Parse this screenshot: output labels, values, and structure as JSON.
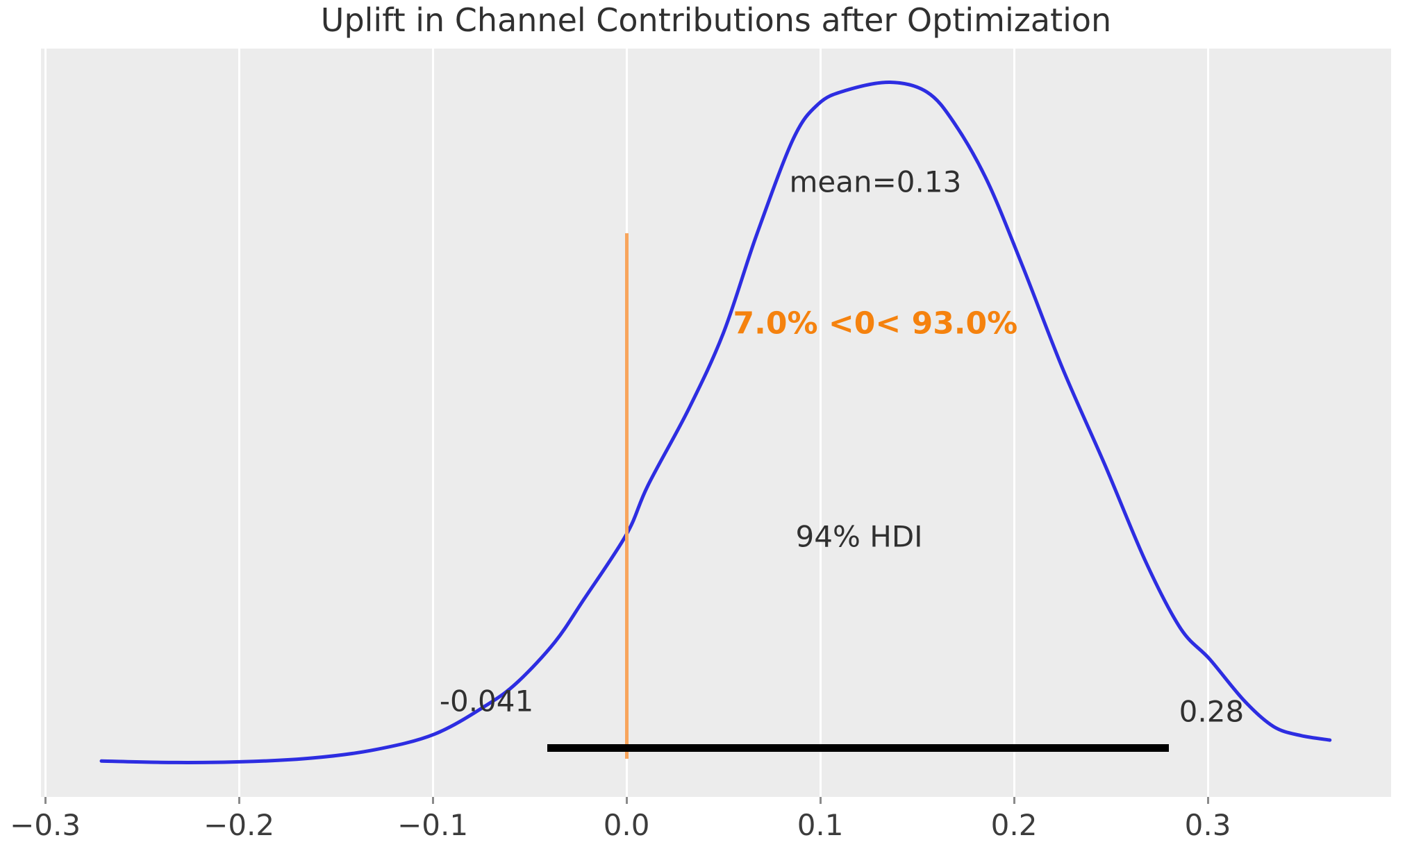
{
  "title": "Uplift in Channel Contributions after Optimization",
  "colors": {
    "plot_background": "#ececec",
    "figure_background": "#ffffff",
    "gridline": "#ffffff",
    "curve": "#2d2de1",
    "ref_line": "#f8a55c",
    "prob_text": "#f5820e",
    "hdi_bar": "#000000",
    "annotation_text": "#303030",
    "tick_text": "#3c3c3c"
  },
  "annotations": {
    "mean_label": "mean=0.13",
    "prob_label": "7.0% <0< 93.0%",
    "hdi_label": "94% HDI",
    "hdi_lower_label": "-0.041",
    "hdi_upper_label": "0.28"
  },
  "chart_data": {
    "type": "line",
    "subtype": "posterior-density-kde",
    "title": "Uplift in Channel Contributions after Optimization",
    "xlabel": "",
    "ylabel": "",
    "legend": "none",
    "grid": "vertical white gridlines on gray panel",
    "xlim": [
      -0.3022,
      0.3946
    ],
    "x_ticks": [
      {
        "value": -0.3,
        "label": "−0.3"
      },
      {
        "value": -0.2,
        "label": "−0.2"
      },
      {
        "value": -0.1,
        "label": "−0.1"
      },
      {
        "value": 0.0,
        "label": "0.0"
      },
      {
        "value": 0.1,
        "label": "0.1"
      },
      {
        "value": 0.2,
        "label": "0.2"
      },
      {
        "value": 0.3,
        "label": "0.3"
      }
    ],
    "stats": {
      "mean": 0.13,
      "hdi_prob": "94%",
      "hdi_lower": -0.041,
      "hdi_upper": 0.28,
      "ref_value": 0,
      "pct_below_ref": 7.0,
      "pct_above_ref": 93.0
    },
    "series": [
      {
        "name": "posterior density",
        "x": [
          -0.271,
          -0.234,
          -0.198,
          -0.162,
          -0.13,
          -0.099,
          -0.072,
          -0.056,
          -0.037,
          -0.022,
          0.0,
          0.011,
          0.032,
          0.05,
          0.067,
          0.086,
          0.099,
          0.113,
          0.136,
          0.155,
          0.169,
          0.186,
          0.204,
          0.225,
          0.247,
          0.268,
          0.286,
          0.301,
          0.319,
          0.334,
          0.348,
          0.363
        ],
        "y_norm": [
          0.048,
          0.046,
          0.047,
          0.052,
          0.063,
          0.084,
          0.123,
          0.154,
          0.207,
          0.264,
          0.351,
          0.416,
          0.518,
          0.62,
          0.75,
          0.879,
          0.926,
          0.944,
          0.955,
          0.942,
          0.901,
          0.824,
          0.712,
          0.573,
          0.443,
          0.314,
          0.225,
          0.184,
          0.128,
          0.094,
          0.082,
          0.076
        ]
      }
    ]
  }
}
